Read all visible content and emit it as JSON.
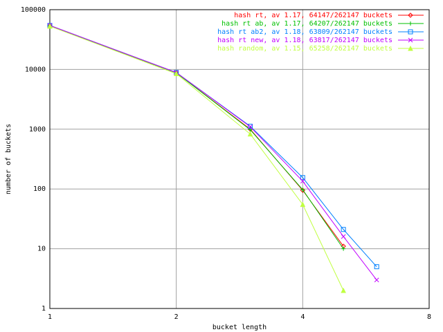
{
  "chart_data": {
    "type": "line",
    "xlabel": "bucket length",
    "ylabel": "number of buckets",
    "xlog": 2,
    "ylog": 10,
    "grid": true,
    "xlim": [
      1,
      8
    ],
    "xticks": [
      1,
      2,
      4,
      8
    ],
    "ylim": [
      1,
      100000
    ],
    "yticks": [
      1,
      10,
      100,
      1000,
      10000,
      100000
    ],
    "legend": "top-right",
    "series": [
      {
        "name": "hash rt, av 1.17, 64147/262147 buckets",
        "color": "#ff0000",
        "marker": "diamond",
        "x": [
          1,
          2,
          3,
          4,
          5
        ],
        "values": [
          54000,
          8800,
          1000,
          95,
          11
        ]
      },
      {
        "name": "hash rt ab, av 1.17, 64207/262147 buckets",
        "color": "#00c000",
        "marker": "plus",
        "x": [
          1,
          2,
          3,
          4,
          5
        ],
        "values": [
          54000,
          8800,
          980,
          97,
          10
        ]
      },
      {
        "name": "hash rt ab2, av 1.18, 63809/262147 buckets",
        "color": "#0080ff",
        "marker": "square",
        "x": [
          1,
          2,
          3,
          4,
          5,
          6
        ],
        "values": [
          54500,
          8900,
          1120,
          155,
          21,
          5
        ]
      },
      {
        "name": "hash rt new, av 1.18, 63817/262147 buckets",
        "color": "#c000ff",
        "marker": "cross",
        "x": [
          1,
          2,
          3,
          4,
          5,
          6
        ],
        "values": [
          54500,
          8900,
          1100,
          135,
          16,
          3
        ]
      },
      {
        "name": "hash random, av 1.15, 65258/262147 buckets",
        "color": "#c0ff40",
        "marker": "triangle",
        "x": [
          1,
          2,
          3,
          4,
          5
        ],
        "values": [
          53000,
          8500,
          830,
          55,
          2
        ]
      }
    ]
  }
}
